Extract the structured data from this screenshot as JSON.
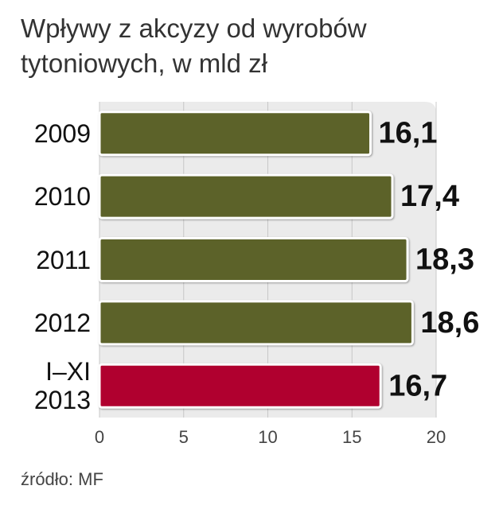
{
  "chart_data": {
    "type": "bar",
    "orientation": "horizontal",
    "title": "Wpływy z akcyzy od wyrobów tytoniowych, w mld zł",
    "categories": [
      "2009",
      "2010",
      "2011",
      "2012",
      "I–XI 2013"
    ],
    "values": [
      16.1,
      17.4,
      18.3,
      18.6,
      16.7
    ],
    "value_labels": [
      "16,1",
      "17,4",
      "18,3",
      "18,6",
      "16,7"
    ],
    "colors": [
      "#5c6229",
      "#5c6229",
      "#5c6229",
      "#5c6229",
      "#b0002f"
    ],
    "xlim": [
      0,
      20
    ],
    "xticks": [
      0,
      5,
      10,
      15,
      20
    ],
    "grid": true,
    "source": "źródło: MF"
  }
}
